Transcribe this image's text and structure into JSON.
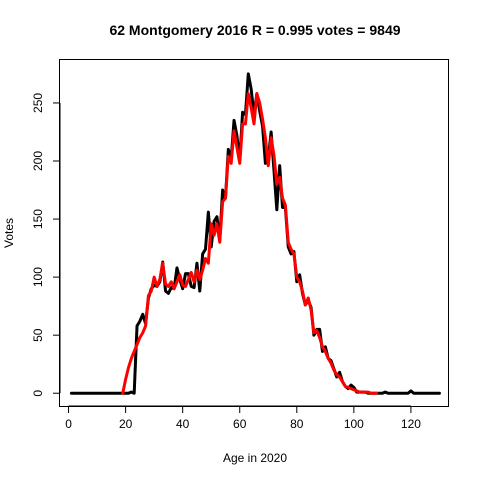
{
  "chart_data": {
    "type": "line",
    "title": "62 Montgomery 2016 R = 0.995 votes = 9849",
    "xlabel": "Age in 2020",
    "ylabel": "Votes",
    "xlim": [
      -3,
      133
    ],
    "ylim": [
      -11,
      287
    ],
    "xticks": [
      0,
      20,
      40,
      60,
      80,
      100,
      120
    ],
    "yticks": [
      0,
      50,
      100,
      150,
      200,
      250
    ],
    "grid": false,
    "series": [
      {
        "color": "#000000",
        "points": [
          [
            1,
            0
          ],
          [
            2,
            0
          ],
          [
            3,
            0
          ],
          [
            4,
            0
          ],
          [
            5,
            0
          ],
          [
            6,
            0
          ],
          [
            7,
            0
          ],
          [
            8,
            0
          ],
          [
            9,
            0
          ],
          [
            10,
            0
          ],
          [
            11,
            0
          ],
          [
            12,
            0
          ],
          [
            13,
            0
          ],
          [
            14,
            0
          ],
          [
            15,
            0
          ],
          [
            16,
            0
          ],
          [
            17,
            0
          ],
          [
            18,
            0
          ],
          [
            19,
            0
          ],
          [
            20,
            0
          ],
          [
            21,
            0
          ],
          [
            22,
            1
          ],
          [
            23,
            0
          ],
          [
            24,
            58
          ],
          [
            25,
            62
          ],
          [
            26,
            68
          ],
          [
            27,
            60
          ],
          [
            28,
            82
          ],
          [
            29,
            90
          ],
          [
            30,
            93
          ],
          [
            31,
            92
          ],
          [
            32,
            96
          ],
          [
            33,
            113
          ],
          [
            34,
            88
          ],
          [
            35,
            86
          ],
          [
            36,
            91
          ],
          [
            37,
            90
          ],
          [
            38,
            108
          ],
          [
            39,
            98
          ],
          [
            40,
            90
          ],
          [
            41,
            103
          ],
          [
            42,
            103
          ],
          [
            43,
            92
          ],
          [
            44,
            91
          ],
          [
            45,
            112
          ],
          [
            46,
            88
          ],
          [
            47,
            120
          ],
          [
            48,
            124
          ],
          [
            49,
            156
          ],
          [
            50,
            126
          ],
          [
            51,
            148
          ],
          [
            52,
            152
          ],
          [
            53,
            132
          ],
          [
            54,
            175
          ],
          [
            55,
            168
          ],
          [
            56,
            210
          ],
          [
            57,
            202
          ],
          [
            58,
            235
          ],
          [
            59,
            222
          ],
          [
            60,
            200
          ],
          [
            61,
            242
          ],
          [
            62,
            240
          ],
          [
            63,
            275
          ],
          [
            64,
            262
          ],
          [
            65,
            240
          ],
          [
            66,
            258
          ],
          [
            67,
            243
          ],
          [
            68,
            230
          ],
          [
            69,
            198
          ],
          [
            70,
            202
          ],
          [
            71,
            225
          ],
          [
            72,
            192
          ],
          [
            73,
            158
          ],
          [
            74,
            196
          ],
          [
            75,
            160
          ],
          [
            76,
            160
          ],
          [
            77,
            126
          ],
          [
            78,
            120
          ],
          [
            79,
            122
          ],
          [
            80,
            96
          ],
          [
            81,
            102
          ],
          [
            82,
            86
          ],
          [
            83,
            76
          ],
          [
            84,
            80
          ],
          [
            85,
            74
          ],
          [
            86,
            50
          ],
          [
            87,
            55
          ],
          [
            88,
            55
          ],
          [
            89,
            36
          ],
          [
            90,
            40
          ],
          [
            91,
            30
          ],
          [
            92,
            28
          ],
          [
            93,
            21
          ],
          [
            94,
            14
          ],
          [
            95,
            18
          ],
          [
            96,
            10
          ],
          [
            97,
            6
          ],
          [
            98,
            4
          ],
          [
            99,
            7
          ],
          [
            100,
            5
          ],
          [
            101,
            1
          ],
          [
            102,
            1
          ],
          [
            103,
            1
          ],
          [
            104,
            1
          ],
          [
            105,
            0
          ],
          [
            106,
            0
          ],
          [
            107,
            0
          ],
          [
            108,
            0
          ],
          [
            109,
            0
          ],
          [
            110,
            0
          ],
          [
            111,
            1
          ],
          [
            112,
            0
          ],
          [
            113,
            0
          ],
          [
            114,
            0
          ],
          [
            115,
            0
          ],
          [
            116,
            0
          ],
          [
            117,
            0
          ],
          [
            118,
            0
          ],
          [
            119,
            0
          ],
          [
            120,
            2
          ],
          [
            121,
            0
          ],
          [
            122,
            0
          ],
          [
            123,
            0
          ],
          [
            124,
            0
          ],
          [
            125,
            0
          ],
          [
            126,
            0
          ],
          [
            127,
            0
          ],
          [
            128,
            0
          ],
          [
            129,
            0
          ],
          [
            130,
            0
          ]
        ]
      },
      {
        "color": "#ff0000",
        "points": [
          [
            19,
            0
          ],
          [
            20,
            12
          ],
          [
            21,
            22
          ],
          [
            22,
            30
          ],
          [
            23,
            36
          ],
          [
            24,
            42
          ],
          [
            25,
            48
          ],
          [
            26,
            52
          ],
          [
            27,
            58
          ],
          [
            28,
            84
          ],
          [
            29,
            88
          ],
          [
            30,
            100
          ],
          [
            31,
            92
          ],
          [
            32,
            98
          ],
          [
            33,
            112
          ],
          [
            34,
            94
          ],
          [
            35,
            92
          ],
          [
            36,
            96
          ],
          [
            37,
            90
          ],
          [
            38,
            96
          ],
          [
            39,
            102
          ],
          [
            40,
            93
          ],
          [
            41,
            92
          ],
          [
            42,
            98
          ],
          [
            43,
            104
          ],
          [
            44,
            96
          ],
          [
            45,
            106
          ],
          [
            46,
            98
          ],
          [
            47,
            106
          ],
          [
            48,
            116
          ],
          [
            49,
            112
          ],
          [
            50,
            146
          ],
          [
            51,
            136
          ],
          [
            52,
            146
          ],
          [
            53,
            130
          ],
          [
            54,
            165
          ],
          [
            55,
            168
          ],
          [
            56,
            204
          ],
          [
            57,
            198
          ],
          [
            58,
            226
          ],
          [
            59,
            212
          ],
          [
            60,
            198
          ],
          [
            61,
            232
          ],
          [
            62,
            232
          ],
          [
            63,
            258
          ],
          [
            64,
            246
          ],
          [
            65,
            232
          ],
          [
            66,
            258
          ],
          [
            67,
            250
          ],
          [
            68,
            236
          ],
          [
            69,
            220
          ],
          [
            70,
            196
          ],
          [
            71,
            220
          ],
          [
            72,
            205
          ],
          [
            73,
            180
          ],
          [
            74,
            186
          ],
          [
            75,
            168
          ],
          [
            76,
            162
          ],
          [
            77,
            130
          ],
          [
            78,
            124
          ],
          [
            79,
            120
          ],
          [
            80,
            100
          ],
          [
            81,
            96
          ],
          [
            82,
            88
          ],
          [
            83,
            76
          ],
          [
            84,
            82
          ],
          [
            85,
            72
          ],
          [
            86,
            52
          ],
          [
            87,
            54
          ],
          [
            88,
            48
          ],
          [
            89,
            40
          ],
          [
            90,
            36
          ],
          [
            91,
            30
          ],
          [
            92,
            26
          ],
          [
            93,
            20
          ],
          [
            94,
            16
          ],
          [
            95,
            14
          ],
          [
            96,
            10
          ],
          [
            97,
            6
          ],
          [
            98,
            5
          ],
          [
            99,
            4
          ],
          [
            100,
            3
          ],
          [
            101,
            2
          ],
          [
            102,
            1
          ],
          [
            103,
            1
          ],
          [
            104,
            1
          ],
          [
            105,
            1
          ],
          [
            106,
            0
          ],
          [
            107,
            0
          ],
          [
            108,
            0
          ]
        ]
      }
    ]
  }
}
